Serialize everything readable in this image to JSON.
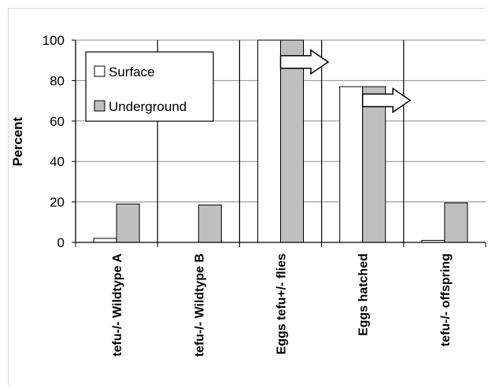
{
  "chart_data": {
    "type": "bar",
    "title": "",
    "xlabel": "",
    "ylabel": "Percent",
    "ylim": [
      0,
      100
    ],
    "yticks": [
      0,
      20,
      40,
      60,
      80,
      100
    ],
    "grid": true,
    "legend_position": "top-left",
    "categories": [
      "tefu-/- Wildtype A",
      "tefu-/- Wildtype B",
      "Eggs tefu+/- flies",
      "Eggs hatched",
      "tefu-/- offspring"
    ],
    "series": [
      {
        "name": "Surface",
        "color": "#ffffff",
        "values": [
          2,
          0,
          100,
          77,
          1
        ]
      },
      {
        "name": "Underground",
        "color": "#bfbfbf",
        "values": [
          19,
          18.5,
          100,
          77,
          19.5
        ]
      }
    ],
    "group_separators": true,
    "arrows": [
      {
        "from_category": 2,
        "to_category": 3,
        "at_value": 90
      },
      {
        "from_category": 3,
        "to_category": 4,
        "at_value": 71
      }
    ]
  }
}
